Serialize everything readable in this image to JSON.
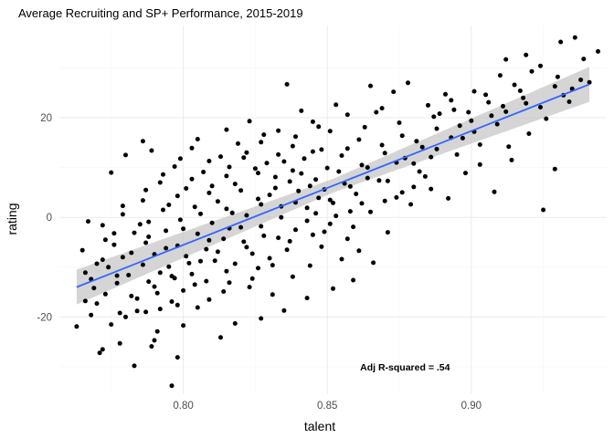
{
  "chart_data": {
    "type": "scatter",
    "title": "Average Recruiting and SP+ Performance, 2015-2019",
    "xlabel": "talent",
    "ylabel": "rating",
    "xlim": [
      0.757,
      0.947
    ],
    "ylim": [
      -35.5,
      38.5
    ],
    "x_ticks": [
      0.8,
      0.85,
      0.9
    ],
    "x_tick_labels": [
      "0.80",
      "0.85",
      "0.90"
    ],
    "y_ticks": [
      -20,
      0,
      20
    ],
    "y_tick_labels": [
      "-20",
      "0",
      "20"
    ],
    "grid": true,
    "legend": "none",
    "annotation": "Adj R-squared = .54",
    "annotation_position": {
      "x": 0.877,
      "y": -30
    },
    "trend": {
      "method": "linear",
      "x": [
        0.763,
        0.941
      ],
      "y": [
        -14.0,
        26.7
      ],
      "se_halfwidth": 2.5
    },
    "colors": {
      "points": "#000000",
      "trend_line": "#3366ff",
      "confidence_band": "#bfbfbf",
      "grid_major": "#ebebeb",
      "grid_minor": "#f5f5f5"
    },
    "points": [
      [
        0.796,
        -33.8
      ],
      [
        0.783,
        -29.8
      ],
      [
        0.798,
        -28.1
      ],
      [
        0.771,
        -27.2
      ],
      [
        0.772,
        -26.5
      ],
      [
        0.789,
        -25.9
      ],
      [
        0.778,
        -25.3
      ],
      [
        0.79,
        -24.7
      ],
      [
        0.813,
        -24.1
      ],
      [
        0.818,
        -21.3
      ],
      [
        0.763,
        -21.9
      ],
      [
        0.775,
        -21.5
      ],
      [
        0.8,
        -21.7
      ],
      [
        0.78,
        -20.0
      ],
      [
        0.768,
        -19.6
      ],
      [
        0.787,
        -19.0
      ],
      [
        0.792,
        -18.4
      ],
      [
        0.805,
        -18.1
      ],
      [
        0.77,
        -17.3
      ],
      [
        0.796,
        -16.9
      ],
      [
        0.809,
        -16.5
      ],
      [
        0.773,
        -15.4
      ],
      [
        0.782,
        -15.8
      ],
      [
        0.791,
        -15.2
      ],
      [
        0.8,
        -14.7
      ],
      [
        0.814,
        -14.9
      ],
      [
        0.831,
        -15.5
      ],
      [
        0.823,
        -14.0
      ],
      [
        0.777,
        -13.2
      ],
      [
        0.788,
        -12.9
      ],
      [
        0.797,
        -12.2
      ],
      [
        0.808,
        -12.8
      ],
      [
        0.768,
        -12.4
      ],
      [
        0.781,
        -11.6
      ],
      [
        0.792,
        -11.1
      ],
      [
        0.803,
        -11.4
      ],
      [
        0.815,
        -10.8
      ],
      [
        0.826,
        -10.2
      ],
      [
        0.838,
        -11.9
      ],
      [
        0.774,
        -10.0
      ],
      [
        0.786,
        -9.5
      ],
      [
        0.795,
        -9.9
      ],
      [
        0.806,
        -8.8
      ],
      [
        0.818,
        -9.3
      ],
      [
        0.83,
        -8.2
      ],
      [
        0.844,
        -9.7
      ],
      [
        0.779,
        -8.0
      ],
      [
        0.79,
        -7.4
      ],
      [
        0.801,
        -7.8
      ],
      [
        0.812,
        -6.9
      ],
      [
        0.824,
        -7.3
      ],
      [
        0.836,
        -6.5
      ],
      [
        0.848,
        -5.9
      ],
      [
        0.765,
        -6.6
      ],
      [
        0.776,
        -5.5
      ],
      [
        0.787,
        -5.1
      ],
      [
        0.798,
        -5.7
      ],
      [
        0.809,
        -4.6
      ],
      [
        0.821,
        -4.9
      ],
      [
        0.833,
        -4.1
      ],
      [
        0.845,
        -3.5
      ],
      [
        0.857,
        -4.3
      ],
      [
        0.783,
        -3.1
      ],
      [
        0.794,
        -2.7
      ],
      [
        0.805,
        -3.3
      ],
      [
        0.816,
        -2.2
      ],
      [
        0.827,
        -1.8
      ],
      [
        0.839,
        -2.5
      ],
      [
        0.851,
        -1.3
      ],
      [
        0.772,
        -1.6
      ],
      [
        0.788,
        -0.9
      ],
      [
        0.799,
        -0.5
      ],
      [
        0.81,
        -1.1
      ],
      [
        0.822,
        0.4
      ],
      [
        0.834,
        0.0
      ],
      [
        0.846,
        0.8
      ],
      [
        0.858,
        1.2
      ],
      [
        0.779,
        0.6
      ],
      [
        0.793,
        1.5
      ],
      [
        0.804,
        2.1
      ],
      [
        0.815,
        1.7
      ],
      [
        0.827,
        2.6
      ],
      [
        0.839,
        3.0
      ],
      [
        0.851,
        3.5
      ],
      [
        0.862,
        2.8
      ],
      [
        0.874,
        4.0
      ],
      [
        0.786,
        3.4
      ],
      [
        0.798,
        4.3
      ],
      [
        0.809,
        4.9
      ],
      [
        0.82,
        5.4
      ],
      [
        0.832,
        5.9
      ],
      [
        0.844,
        6.3
      ],
      [
        0.856,
        6.8
      ],
      [
        0.868,
        7.4
      ],
      [
        0.88,
        6.1
      ],
      [
        0.792,
        7.0
      ],
      [
        0.803,
        7.7
      ],
      [
        0.815,
        8.3
      ],
      [
        0.826,
        8.9
      ],
      [
        0.838,
        9.4
      ],
      [
        0.85,
        9.9
      ],
      [
        0.862,
        10.5
      ],
      [
        0.874,
        11.0
      ],
      [
        0.886,
        12.1
      ],
      [
        0.775,
        9.0
      ],
      [
        0.797,
        10.2
      ],
      [
        0.809,
        11.3
      ],
      [
        0.821,
        12.0
      ],
      [
        0.833,
        12.6
      ],
      [
        0.845,
        13.2
      ],
      [
        0.857,
        13.8
      ],
      [
        0.869,
        14.5
      ],
      [
        0.881,
        15.3
      ],
      [
        0.893,
        16.0
      ],
      [
        0.78,
        12.5
      ],
      [
        0.803,
        13.9
      ],
      [
        0.827,
        15.1
      ],
      [
        0.839,
        16.2
      ],
      [
        0.851,
        17.3
      ],
      [
        0.863,
        18.1
      ],
      [
        0.875,
        19.0
      ],
      [
        0.887,
        20.2
      ],
      [
        0.899,
        21.1
      ],
      [
        0.911,
        22.3
      ],
      [
        0.786,
        15.3
      ],
      [
        0.815,
        17.6
      ],
      [
        0.845,
        19.2
      ],
      [
        0.857,
        20.6
      ],
      [
        0.869,
        21.9
      ],
      [
        0.893,
        23.5
      ],
      [
        0.905,
        24.6
      ],
      [
        0.917,
        25.4
      ],
      [
        0.929,
        26.3
      ],
      [
        0.941,
        27.1
      ],
      [
        0.823,
        19.3
      ],
      [
        0.836,
        26.7
      ],
      [
        0.865,
        26.4
      ],
      [
        0.878,
        27.0
      ],
      [
        0.91,
        28.5
      ],
      [
        0.924,
        30.4
      ],
      [
        0.931,
        35.2
      ],
      [
        0.936,
        36.1
      ],
      [
        0.944,
        33.3
      ],
      [
        0.919,
        32.6
      ],
      [
        0.912,
        31.7
      ],
      [
        0.901,
        25.3
      ],
      [
        0.896,
        18.4
      ],
      [
        0.888,
        13.7
      ],
      [
        0.884,
        8.2
      ],
      [
        0.879,
        2.6
      ],
      [
        0.871,
        -3.0
      ],
      [
        0.866,
        -9.1
      ],
      [
        0.859,
        -12.6
      ],
      [
        0.852,
        -14.3
      ],
      [
        0.843,
        -16.2
      ],
      [
        0.835,
        -18.7
      ],
      [
        0.827,
        -20.3
      ],
      [
        0.908,
        5.1
      ],
      [
        0.914,
        11.5
      ],
      [
        0.92,
        16.8
      ],
      [
        0.925,
        1.5
      ],
      [
        0.929,
        9.7
      ],
      [
        0.934,
        23.2
      ],
      [
        0.939,
        31.8
      ],
      [
        0.903,
        14.6
      ],
      [
        0.898,
        8.9
      ],
      [
        0.892,
        3.8
      ],
      [
        0.886,
        5.7
      ],
      [
        0.88,
        10.8
      ],
      [
        0.876,
        16.4
      ],
      [
        0.87,
        12.9
      ],
      [
        0.864,
        7.9
      ],
      [
        0.86,
        4.7
      ],
      [
        0.854,
        9.2
      ],
      [
        0.848,
        13.6
      ],
      [
        0.842,
        11.8
      ],
      [
        0.837,
        7.2
      ],
      [
        0.83,
        4.5
      ],
      [
        0.825,
        9.8
      ],
      [
        0.818,
        6.7
      ],
      [
        0.812,
        3.2
      ],
      [
        0.806,
        0.7
      ],
      [
        0.8,
        -2.3
      ],
      [
        0.794,
        -6.2
      ],
      [
        0.788,
        -3.9
      ],
      [
        0.782,
        -7.1
      ],
      [
        0.776,
        -3.2
      ],
      [
        0.77,
        -9.3
      ],
      [
        0.766,
        -11.1
      ],
      [
        0.795,
        2.5
      ],
      [
        0.801,
        5.8
      ],
      [
        0.807,
        9.1
      ],
      [
        0.813,
        12.2
      ],
      [
        0.819,
        14.8
      ],
      [
        0.841,
        21.4
      ],
      [
        0.853,
        22.6
      ],
      [
        0.847,
        18.2
      ],
      [
        0.833,
        17.4
      ],
      [
        0.829,
        10.9
      ],
      [
        0.817,
        0.9
      ],
      [
        0.811,
        -8.7
      ],
      [
        0.804,
        -13.5
      ],
      [
        0.798,
        -17.6
      ],
      [
        0.791,
        -22.9
      ],
      [
        0.784,
        -18.8
      ],
      [
        0.777,
        -11.7
      ],
      [
        0.769,
        -14.2
      ],
      [
        0.787,
        5.5
      ],
      [
        0.793,
        8.6
      ],
      [
        0.799,
        11.8
      ],
      [
        0.785,
        -1.4
      ],
      [
        0.779,
        2.3
      ],
      [
        0.773,
        -4.5
      ],
      [
        0.767,
        -0.8
      ],
      [
        0.861,
        -6.7
      ],
      [
        0.855,
        -8.4
      ],
      [
        0.849,
        -2.9
      ],
      [
        0.843,
        1.9
      ],
      [
        0.837,
        -4.8
      ],
      [
        0.831,
        -9.6
      ],
      [
        0.824,
        -12.3
      ],
      [
        0.828,
        -3.7
      ],
      [
        0.822,
        -6.0
      ],
      [
        0.816,
        -13.1
      ],
      [
        0.834,
        2.2
      ],
      [
        0.84,
        5.3
      ],
      [
        0.846,
        7.6
      ],
      [
        0.852,
        2.9
      ],
      [
        0.858,
        6.2
      ],
      [
        0.864,
        10.0
      ],
      [
        0.87,
        3.3
      ],
      [
        0.876,
        5.0
      ],
      [
        0.882,
        9.2
      ],
      [
        0.888,
        17.8
      ],
      [
        0.894,
        21.6
      ],
      [
        0.9,
        19.4
      ],
      [
        0.906,
        23.1
      ],
      [
        0.912,
        21.2
      ],
      [
        0.918,
        24.0
      ],
      [
        0.924,
        22.1
      ],
      [
        0.93,
        28.2
      ],
      [
        0.935,
        25.8
      ],
      [
        0.921,
        29.3
      ],
      [
        0.915,
        26.6
      ],
      [
        0.909,
        18.7
      ],
      [
        0.903,
        10.6
      ],
      [
        0.897,
        15.9
      ],
      [
        0.891,
        24.7
      ],
      [
        0.885,
        22.5
      ],
      [
        0.873,
        25.2
      ],
      [
        0.867,
        21.1
      ],
      [
        0.861,
        15.6
      ],
      [
        0.855,
        12.4
      ],
      [
        0.849,
        5.6
      ],
      [
        0.843,
        -0.7
      ],
      [
        0.838,
        14.3
      ],
      [
        0.832,
        8.1
      ],
      [
        0.826,
        3.7
      ],
      [
        0.82,
        -2.0
      ],
      [
        0.814,
        -4.3
      ],
      [
        0.808,
        -6.4
      ],
      [
        0.802,
        -9.2
      ],
      [
        0.796,
        -11.8
      ],
      [
        0.79,
        -13.9
      ],
      [
        0.784,
        -16.3
      ],
      [
        0.778,
        -19.2
      ],
      [
        0.772,
        -8.5
      ],
      [
        0.766,
        -16.8
      ],
      [
        0.789,
        13.4
      ],
      [
        0.805,
        15.7
      ],
      [
        0.81,
        6.3
      ],
      [
        0.816,
        10.1
      ],
      [
        0.822,
        13.0
      ],
      [
        0.828,
        16.6
      ],
      [
        0.835,
        11.2
      ],
      [
        0.841,
        8.8
      ],
      [
        0.847,
        3.9
      ],
      [
        0.853,
        0.3
      ],
      [
        0.859,
        -1.9
      ],
      [
        0.865,
        1.1
      ],
      [
        0.871,
        7.3
      ],
      [
        0.877,
        11.9
      ],
      [
        0.883,
        14.1
      ],
      [
        0.889,
        20.8
      ],
      [
        0.895,
        12.6
      ],
      [
        0.901,
        17.2
      ],
      [
        0.907,
        20.4
      ],
      [
        0.913,
        14.2
      ],
      [
        0.919,
        22.9
      ],
      [
        0.926,
        19.8
      ],
      [
        0.932,
        24.5
      ],
      [
        0.938,
        27.6
      ]
    ]
  }
}
